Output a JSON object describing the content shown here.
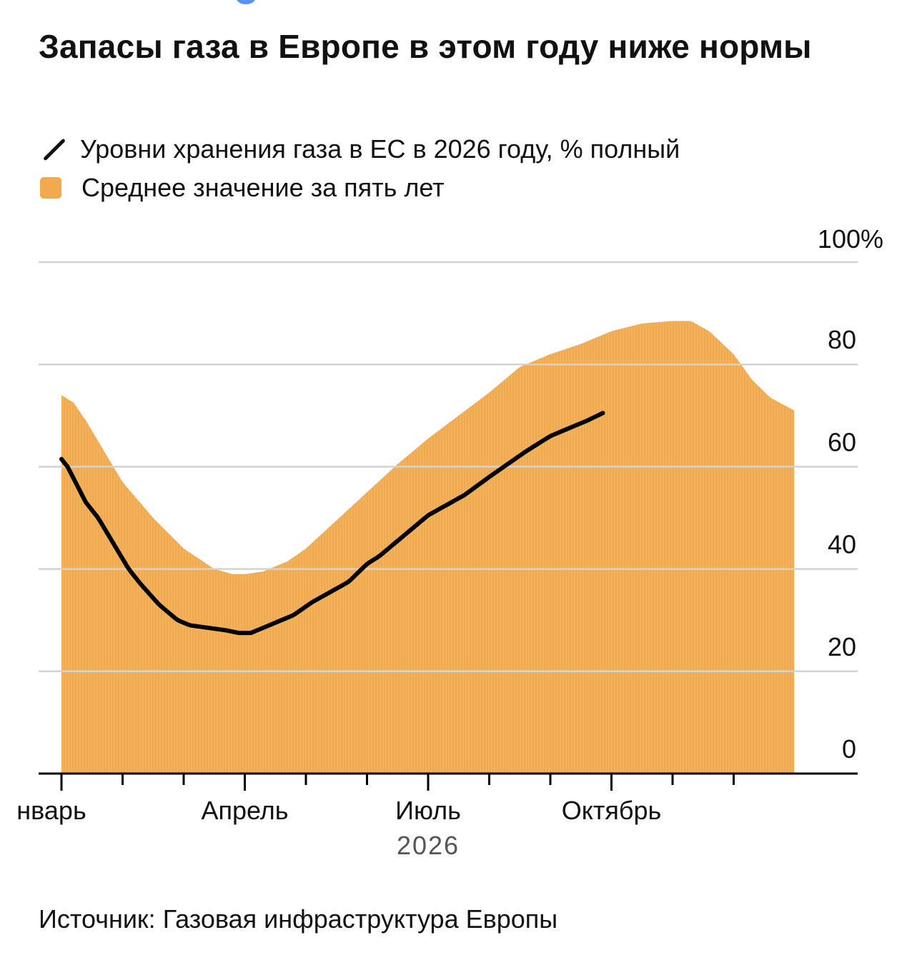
{
  "title": "Запасы газа в Европе в этом году ниже нормы",
  "legend": {
    "line_label": "Уровни хранения газа в ЕС в 2026 году, % полный",
    "area_label": "Среднее значение за пять лет"
  },
  "source": "Источник: Газовая инфраструктура Европы",
  "colors": {
    "area": "#f0aa4d",
    "line": "#000000",
    "grid": "#d2d2d2",
    "axis": "#000000"
  },
  "chart_data": {
    "type": "area",
    "x_axis": {
      "year_label": "2026",
      "month_labels": [
        {
          "label": "нварь",
          "month": 0
        },
        {
          "label": "Апрель",
          "month": 3
        },
        {
          "label": "Июль",
          "month": 6
        },
        {
          "label": "Октябрь",
          "month": 9
        }
      ],
      "range_months": [
        0,
        12
      ]
    },
    "y_axis": {
      "ticks": [
        0,
        20,
        40,
        60,
        80,
        100
      ],
      "tick_labels": [
        "0",
        "20",
        "40",
        "60",
        "80",
        "100%"
      ],
      "ylim": [
        0,
        100
      ]
    },
    "grid": true,
    "series": [
      {
        "name": "Среднее значение за пять лет",
        "kind": "area",
        "x": [
          0,
          0.2,
          0.4,
          0.7,
          1.0,
          1.5,
          2.0,
          2.5,
          2.8,
          3.0,
          3.3,
          3.7,
          4.0,
          4.5,
          5.0,
          5.5,
          6.0,
          6.5,
          7.0,
          7.5,
          8.0,
          8.5,
          9.0,
          9.5,
          10.0,
          10.3,
          10.6,
          11.0,
          11.3,
          11.6,
          11.99
        ],
        "y": [
          74,
          72.5,
          69,
          63,
          57,
          50,
          44,
          40,
          39,
          39,
          39.5,
          41.5,
          44,
          49.5,
          55,
          60.5,
          65.5,
          70,
          74.5,
          79.5,
          82,
          84,
          86.5,
          88,
          88.5,
          88.5,
          86.5,
          82,
          77,
          73.5,
          71
        ]
      },
      {
        "name": "Уровни хранения газа в ЕС в 2026 году, % полный",
        "kind": "line",
        "x": [
          0,
          0.1,
          0.4,
          0.6,
          0.9,
          1.1,
          1.3,
          1.6,
          1.9,
          2.1,
          2.4,
          2.7,
          2.9,
          3.0,
          3.1,
          3.4,
          3.8,
          4.1,
          4.4,
          4.7,
          5.0,
          5.2,
          5.5,
          5.8,
          6.0,
          6.3,
          6.6,
          7.0,
          7.3,
          7.6,
          8.0,
          8.3,
          8.6,
          8.86
        ],
        "y": [
          61.5,
          60,
          53,
          50,
          44,
          40,
          37,
          33,
          30,
          29,
          28.5,
          28,
          27.5,
          27.5,
          27.5,
          29,
          31,
          33.5,
          35.5,
          37.5,
          41,
          42.5,
          45.5,
          48.5,
          50.5,
          52.5,
          54.5,
          58,
          60.5,
          63,
          66,
          67.5,
          69,
          70.5
        ]
      }
    ]
  }
}
